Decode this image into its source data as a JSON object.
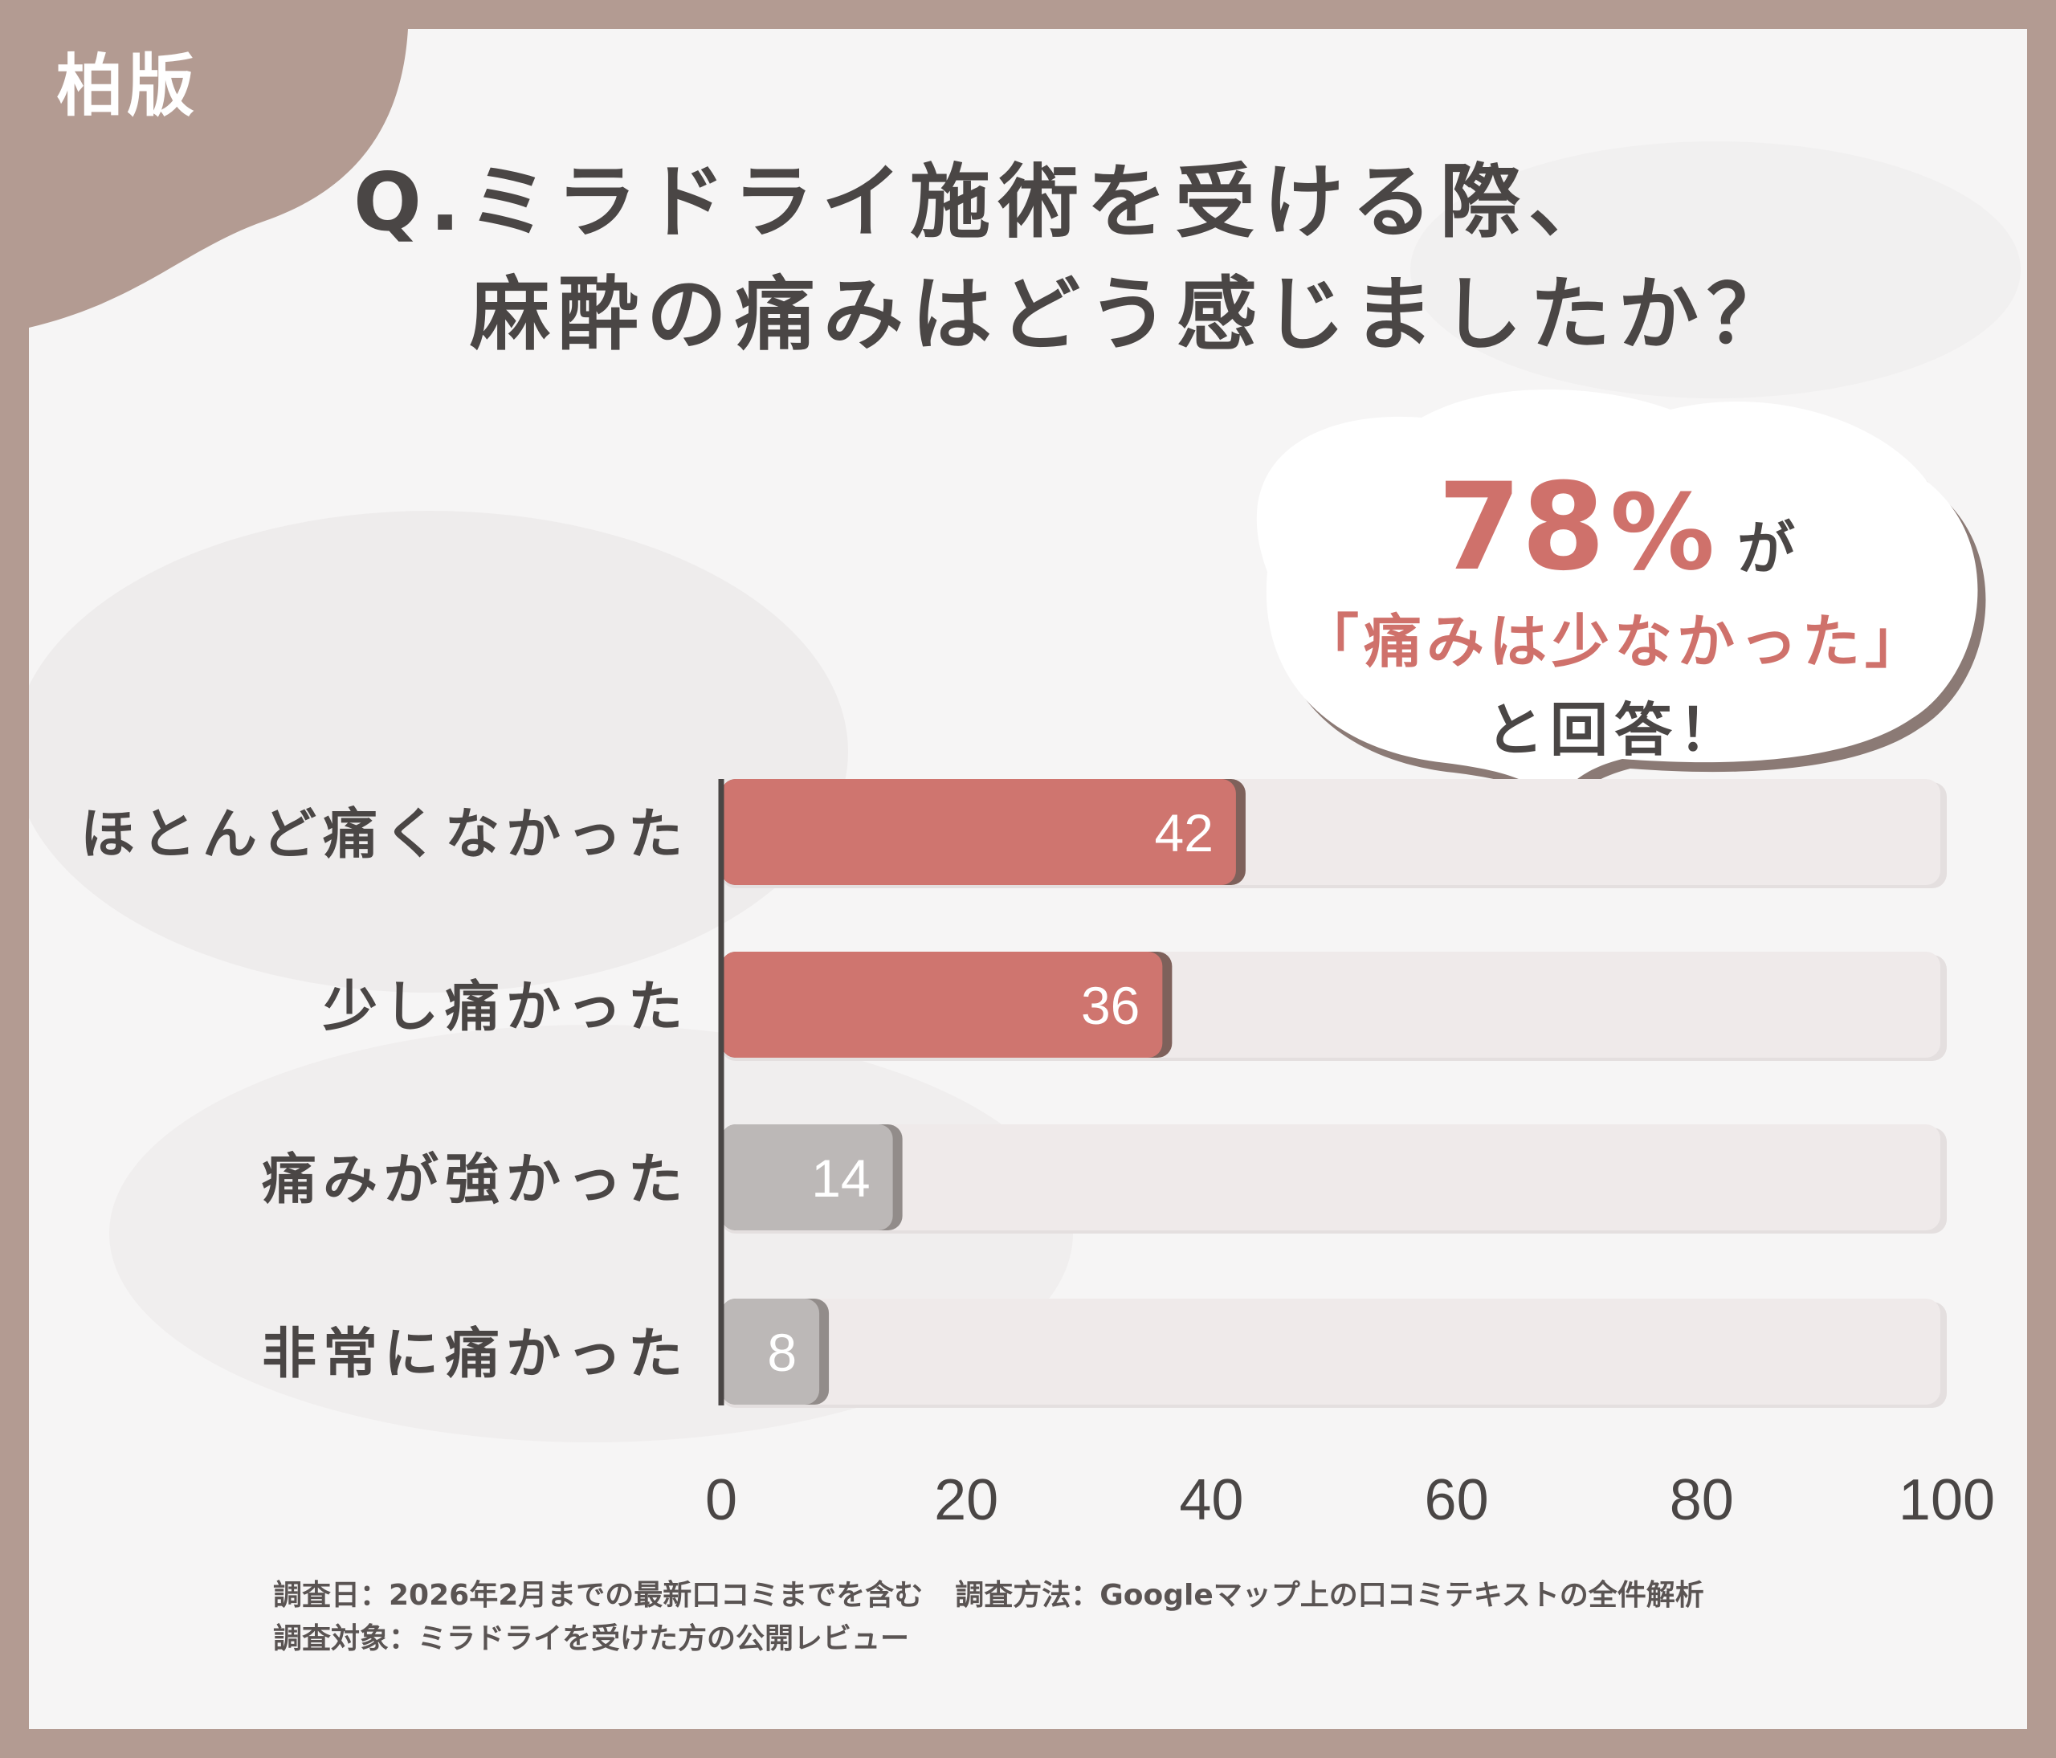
{
  "region_tag": "柏版",
  "title": {
    "line1": "Q.ミラドライ施術を受ける際、",
    "line2": "麻酔の痛みはどう感じましたか？"
  },
  "callout": {
    "percent": "78",
    "percent_sign": "%",
    "particle": "が",
    "quote": "「痛みは少なかった」",
    "answer": "と回答！"
  },
  "chart_data": {
    "type": "bar",
    "orientation": "horizontal",
    "categories": [
      "ほとんど痛くなかった",
      "少し痛かった",
      "痛みが強かった",
      "非常に痛かった"
    ],
    "values": [
      42,
      36,
      14,
      8
    ],
    "value_labels": [
      "42",
      "36",
      "14",
      "8"
    ],
    "xlim": [
      0,
      100
    ],
    "x_ticks": [
      0,
      20,
      40,
      60,
      80,
      100
    ],
    "x_tick_labels": [
      "0",
      "20",
      "40",
      "60",
      "80",
      "100"
    ],
    "colors": {
      "highlight": "#cf756f",
      "muted": "#bcb8b7",
      "track": "#efeaea",
      "axis": "#4a4645"
    },
    "bar_colors": [
      "highlight",
      "highlight",
      "muted",
      "muted"
    ],
    "grid": false,
    "legend": "none"
  },
  "notes": {
    "date": "調査日：2026年2月までの最新口コミまでを含む",
    "method": "調査方法：Googleマップ上の口コミテキストの全件解析",
    "target": "調査対象：ミラドライを受けた方の公開レビュー"
  }
}
